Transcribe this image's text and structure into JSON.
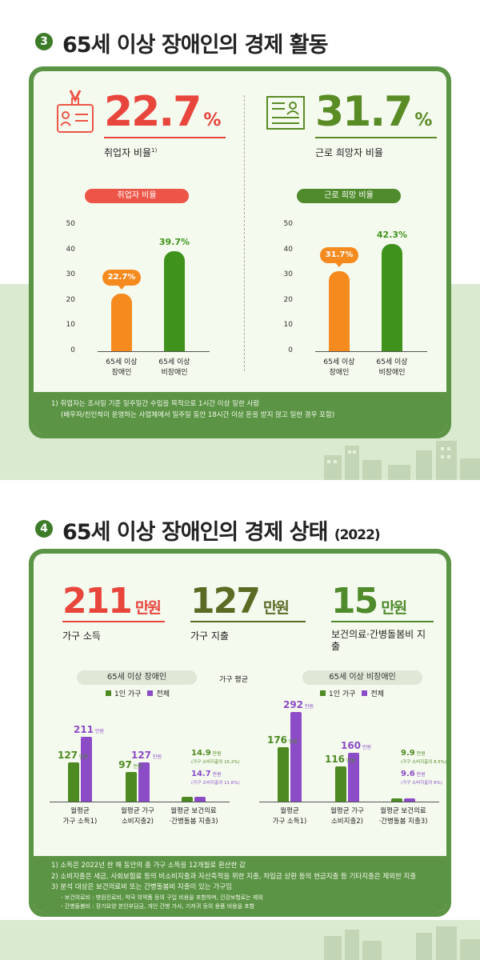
{
  "section3": {
    "num": "3",
    "title": "65세 이상 장애인의 경제 활동",
    "stats": [
      {
        "value": "22.7",
        "unit": "%",
        "label": "취업자 비율",
        "sup": "1)",
        "color": "#e8453c"
      },
      {
        "value": "31.7",
        "unit": "%",
        "label": "근로 희망자 비율",
        "sup": "",
        "color": "#5a8c26"
      }
    ],
    "charts": [
      {
        "pill": "취업자 비율",
        "pill_color": "#ec5548"
      },
      {
        "pill": "근로 희망 비율",
        "pill_color": "#4f8b2c"
      }
    ],
    "footnote": [
      "1) 취업자는 조사일 기준 일주일간 수입을 목적으로 1시간 이상 일한 사람",
      "(배우자/친인척이 운영하는 사업체에서 일주일 동안 18시간 이상 돈을 받지 않고 일한 경우 포함)"
    ]
  },
  "section4": {
    "num": "4",
    "title": "65세 이상 장애인의 경제 상태",
    "year": "(2022)",
    "stats": [
      {
        "value": "211",
        "unit": "만원",
        "label": "가구 소득",
        "color": "#e8453c"
      },
      {
        "value": "127",
        "unit": "만원",
        "label": "가구 지출",
        "color": "#5a6b24"
      },
      {
        "value": "15",
        "unit": "만원",
        "label": "보건의료·간병돌봄비 지출",
        "color": "#4f8b2c"
      }
    ],
    "pill_disabled": "65세 이상 장애인",
    "pill_nondisabled": "65세 이상 비장애인",
    "center_label": "가구 평균",
    "legend": {
      "one": "1인 가구",
      "all": "전체",
      "one_color": "#4e8a22",
      "all_color": "#8c4cc7"
    },
    "footnotes": [
      "1) 소득은 2022년 한 해 동안의 총 가구 소득을 12개월로 환산한 값",
      "2) 소비지출은 세금, 사회보험료 등의 비소비지출과 자산축적을 위한 지출, 차입금 상환 등의 현금지출 등 기타지출은 제외한 지출",
      "3) 분석 대상은 보건의료비 또는 간병돌봄비 지출이 있는 가구임",
      "- 보건의료비 : 병원진료비, 약국 의약품 등의 구입 비용을 포함하며, 건강보험료는 제외",
      "- 간병돌봄비 : 장기요양 본인부담금, 개인 간병 가사, 기저귀 등의 용품 비용을 포함"
    ]
  },
  "chart_data": [
    {
      "type": "bar",
      "title": "취업자 비율",
      "categories": [
        "65세 이상\n장애인",
        "65세 이상\n비장애인"
      ],
      "values": [
        22.7,
        39.7
      ],
      "value_labels": [
        "22.7%",
        "39.7%"
      ],
      "colors": [
        "#f58a1f",
        "#3f931c"
      ],
      "yticks": [
        "50",
        "40",
        "30",
        "20",
        "10",
        "0"
      ],
      "ylim": [
        0,
        50
      ]
    },
    {
      "type": "bar",
      "title": "근로 희망 비율",
      "categories": [
        "65세 이상\n장애인",
        "65세 이상\n비장애인"
      ],
      "values": [
        31.7,
        42.3
      ],
      "value_labels": [
        "31.7%",
        "42.3%"
      ],
      "colors": [
        "#f58a1f",
        "#3f931c"
      ],
      "yticks": [
        "50",
        "40",
        "30",
        "20",
        "10",
        "0"
      ],
      "ylim": [
        0,
        50
      ]
    },
    {
      "type": "bar",
      "title": "65세 이상 장애인",
      "categories": [
        "월평균\n가구 소득1)",
        "월평균 가구\n소비지출2)",
        "월평균 보건의료\n·간병돌봄 지출3)"
      ],
      "series": [
        {
          "name": "1인 가구",
          "values": [
            127,
            97,
            14.9
          ],
          "labels": [
            "127",
            "97",
            "14.9"
          ],
          "notes": [
            "",
            "",
            "(가구 소비지출의 15.2%)"
          ]
        },
        {
          "name": "전체",
          "values": [
            211,
            127,
            14.7
          ],
          "labels": [
            "211",
            "127",
            "14.7"
          ],
          "notes": [
            "",
            "",
            "(가구 소비지출의 11.6%)"
          ]
        }
      ],
      "unit": "만원"
    },
    {
      "type": "bar",
      "title": "65세 이상 비장애인",
      "categories": [
        "월평균\n가구 소득1)",
        "월평균 가구\n소비지출2)",
        "월평균 보건의료\n·간병돌봄 지출3)"
      ],
      "series": [
        {
          "name": "1인 가구",
          "values": [
            176,
            116,
            9.9
          ],
          "labels": [
            "176",
            "116",
            "9.9"
          ],
          "notes": [
            "",
            "",
            "(가구 소비지출의 8.5%)"
          ]
        },
        {
          "name": "전체",
          "values": [
            292,
            160,
            9.6
          ],
          "labels": [
            "292",
            "160",
            "9.6"
          ],
          "notes": [
            "",
            "",
            "(가구 소비지출의 6%)"
          ]
        }
      ],
      "unit": "만원"
    }
  ]
}
